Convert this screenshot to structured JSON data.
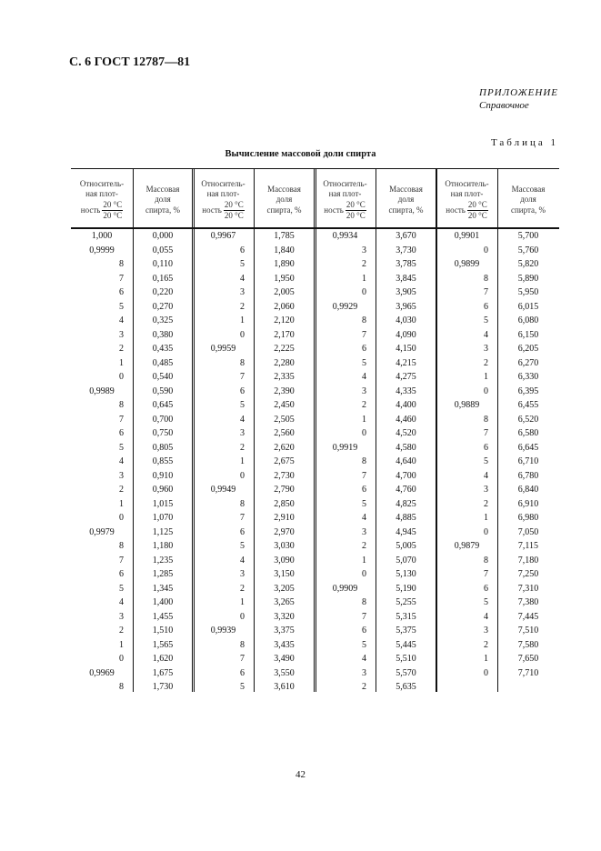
{
  "header": "С. 6 ГОСТ 12787—81",
  "appendix": {
    "title": "ПРИЛОЖЕНИЕ",
    "subtitle": "Справочное"
  },
  "table_number": "Таблица 1",
  "table_title": "Вычисление массовой доли спирта",
  "columns": {
    "density_label_a": "Относитель-",
    "density_label_b": "ная плот-",
    "density_label_c": "ность",
    "density_num": "20 °C",
    "density_den": "20 °C",
    "mass_label_a": "Массовая",
    "mass_label_b": "доля",
    "mass_label_c": "спирта, %"
  },
  "groups": [
    {
      "density": [
        "1,000",
        "0,9999",
        "8",
        "7",
        "6",
        "5",
        "4",
        "3",
        "2",
        "1",
        "0",
        "0,9989",
        "8",
        "7",
        "6",
        "5",
        "4",
        "3",
        "2",
        "1",
        "0",
        "0,9979",
        "8",
        "7",
        "6",
        "5",
        "4",
        "3",
        "2",
        "1",
        "0",
        "0,9969",
        "8"
      ],
      "mass": [
        "0,000",
        "0,055",
        "0,110",
        "0,165",
        "0,220",
        "0,270",
        "0,325",
        "0,380",
        "0,435",
        "0,485",
        "0,540",
        "0,590",
        "0,645",
        "0,700",
        "0,750",
        "0,805",
        "0,855",
        "0,910",
        "0,960",
        "1,015",
        "1,070",
        "1,125",
        "1,180",
        "1,235",
        "1,285",
        "1,345",
        "1,400",
        "1,455",
        "1,510",
        "1,565",
        "1,620",
        "1,675",
        "1,730"
      ]
    },
    {
      "density": [
        "0,9967",
        "6",
        "5",
        "4",
        "3",
        "2",
        "1",
        "0",
        "0,9959",
        "8",
        "7",
        "6",
        "5",
        "4",
        "3",
        "2",
        "1",
        "0",
        "0,9949",
        "8",
        "7",
        "6",
        "5",
        "4",
        "3",
        "2",
        "1",
        "0",
        "0,9939",
        "8",
        "7",
        "6",
        "5"
      ],
      "mass": [
        "1,785",
        "1,840",
        "1,890",
        "1,950",
        "2,005",
        "2,060",
        "2,120",
        "2,170",
        "2,225",
        "2,280",
        "2,335",
        "2,390",
        "2,450",
        "2,505",
        "2,560",
        "2,620",
        "2,675",
        "2,730",
        "2,790",
        "2,850",
        "2,910",
        "2,970",
        "3,030",
        "3,090",
        "3,150",
        "3,205",
        "3,265",
        "3,320",
        "3,375",
        "3,435",
        "3,490",
        "3,550",
        "3,610"
      ]
    },
    {
      "density": [
        "0,9934",
        "3",
        "2",
        "1",
        "0",
        "0,9929",
        "8",
        "7",
        "6",
        "5",
        "4",
        "3",
        "2",
        "1",
        "0",
        "0,9919",
        "8",
        "7",
        "6",
        "5",
        "4",
        "3",
        "2",
        "1",
        "0",
        "0,9909",
        "8",
        "7",
        "6",
        "5",
        "4",
        "3",
        "2"
      ],
      "mass": [
        "3,670",
        "3,730",
        "3,785",
        "3,845",
        "3,905",
        "3,965",
        "4,030",
        "4,090",
        "4,150",
        "4,215",
        "4,275",
        "4,335",
        "4,400",
        "4,460",
        "4,520",
        "4,580",
        "4,640",
        "4,700",
        "4,760",
        "4,825",
        "4,885",
        "4,945",
        "5,005",
        "5,070",
        "5,130",
        "5,190",
        "5,255",
        "5,315",
        "5,375",
        "5,445",
        "5,510",
        "5,570",
        "5,635"
      ]
    },
    {
      "density": [
        "0,9901",
        "0",
        "0,9899",
        "8",
        "7",
        "6",
        "5",
        "4",
        "3",
        "2",
        "1",
        "0",
        "0,9889",
        "8",
        "7",
        "6",
        "5",
        "4",
        "3",
        "2",
        "1",
        "0",
        "0,9879",
        "8",
        "7",
        "6",
        "5",
        "4",
        "3",
        "2",
        "1",
        "0"
      ],
      "mass": [
        "5,700",
        "5,760",
        "5,820",
        "5,890",
        "5,950",
        "6,015",
        "6,080",
        "6,150",
        "6,205",
        "6,270",
        "6,330",
        "6,395",
        "6,455",
        "6,520",
        "6,580",
        "6,645",
        "6,710",
        "6,780",
        "6,840",
        "6,910",
        "6,980",
        "7,050",
        "7,115",
        "7,180",
        "7,250",
        "7,310",
        "7,380",
        "7,445",
        "7,510",
        "7,580",
        "7,650",
        "7,710"
      ]
    }
  ],
  "page_number": "42"
}
